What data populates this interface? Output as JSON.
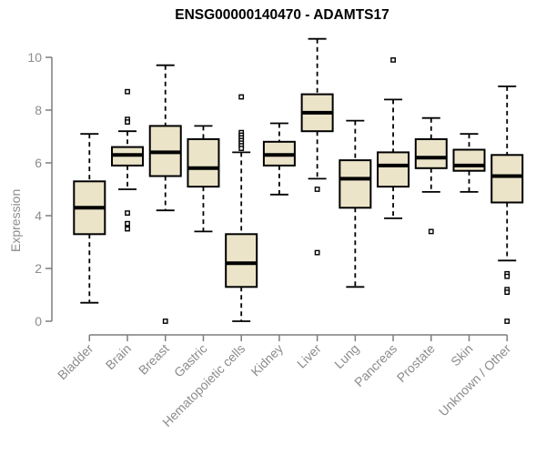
{
  "chart_data": {
    "type": "boxplot",
    "title": "ENSG00000140470 - ADAMTS17",
    "ylabel": "Expression",
    "ylim": [
      0,
      10
    ],
    "yticks": [
      0,
      2,
      4,
      6,
      8,
      10
    ],
    "grid": false,
    "legend": "none",
    "box_fill_color": "#EBE4C9",
    "box_border_color": "#000000",
    "axis_line_color": "#7d7d7d",
    "tick_label_color": "#8c8c8c",
    "categories": [
      "Bladder",
      "Brain",
      "Breast",
      "Gastric",
      "Hematopoietic cells",
      "Kidney",
      "Liver",
      "Lung",
      "Pancreas",
      "Prostate",
      "Skin",
      "Unknown / Other"
    ],
    "series": [
      {
        "category": "Bladder",
        "low": 0.7,
        "q1": 3.3,
        "median": 4.3,
        "q3": 5.3,
        "high": 7.1,
        "outliers": []
      },
      {
        "category": "Brain",
        "low": 5.0,
        "q1": 5.9,
        "median": 6.3,
        "q3": 6.6,
        "high": 7.2,
        "outliers": [
          8.7,
          7.65,
          7.55,
          4.1,
          3.7,
          3.5
        ]
      },
      {
        "category": "Breast",
        "low": 4.2,
        "q1": 5.5,
        "median": 6.4,
        "q3": 7.4,
        "high": 9.7,
        "outliers": [
          0.0
        ]
      },
      {
        "category": "Gastric",
        "low": 3.4,
        "q1": 5.1,
        "median": 5.8,
        "q3": 6.9,
        "high": 7.4,
        "outliers": []
      },
      {
        "category": "Hematopoietic cells",
        "low": 0.0,
        "q1": 1.3,
        "median": 2.2,
        "q3": 3.3,
        "high": 6.4,
        "outliers": [
          8.5,
          7.15,
          7.05,
          6.95,
          6.85,
          6.75,
          6.65,
          6.55
        ]
      },
      {
        "category": "Kidney",
        "low": 4.8,
        "q1": 5.9,
        "median": 6.3,
        "q3": 6.8,
        "high": 7.5,
        "outliers": []
      },
      {
        "category": "Liver",
        "low": 5.4,
        "q1": 7.2,
        "median": 7.9,
        "q3": 8.6,
        "high": 10.7,
        "outliers": [
          5.0,
          2.6
        ]
      },
      {
        "category": "Lung",
        "low": 1.3,
        "q1": 4.3,
        "median": 5.4,
        "q3": 6.1,
        "high": 7.6,
        "outliers": []
      },
      {
        "category": "Pancreas",
        "low": 3.9,
        "q1": 5.1,
        "median": 5.9,
        "q3": 6.4,
        "high": 8.4,
        "outliers": [
          9.9
        ]
      },
      {
        "category": "Prostate",
        "low": 4.9,
        "q1": 5.8,
        "median": 6.2,
        "q3": 6.9,
        "high": 7.7,
        "outliers": [
          3.4
        ]
      },
      {
        "category": "Skin",
        "low": 4.9,
        "q1": 5.7,
        "median": 5.9,
        "q3": 6.5,
        "high": 7.1,
        "outliers": []
      },
      {
        "category": "Unknown / Other",
        "low": 2.3,
        "q1": 4.5,
        "median": 5.5,
        "q3": 6.3,
        "high": 8.9,
        "outliers": [
          1.8,
          1.7,
          1.2,
          1.1,
          0.0
        ]
      }
    ]
  }
}
